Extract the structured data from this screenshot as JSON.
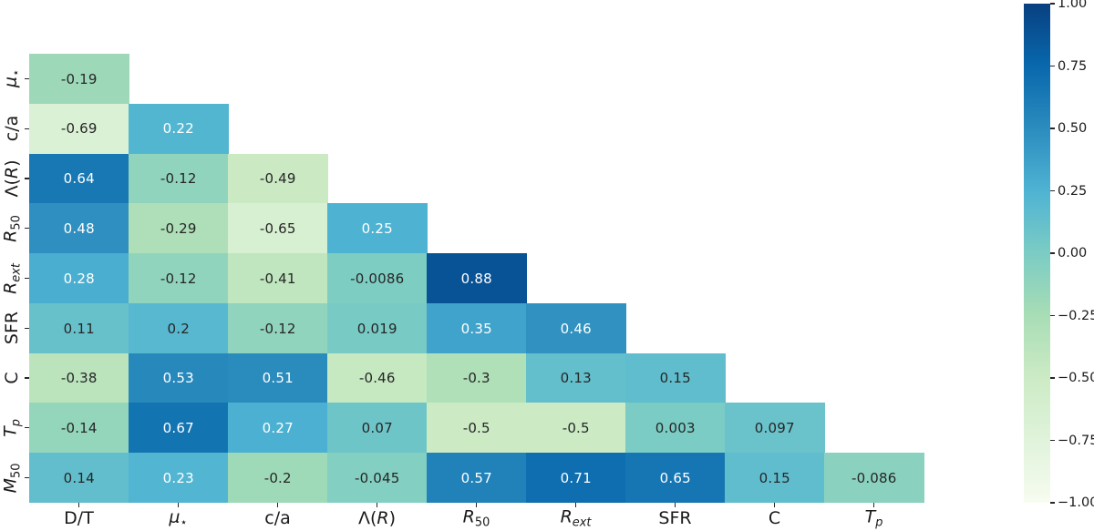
{
  "figure": {
    "background": "#ffffff"
  },
  "chart_data": {
    "type": "heatmap",
    "subtype": "lower-triangular correlation matrix",
    "title": "",
    "xlabel": "",
    "ylabel": "",
    "grid": false,
    "colormap": "GnBu",
    "vmin": -1,
    "vmax": 1,
    "colormap_stops": [
      "#f7fcf0",
      "#e0f3db",
      "#ccebc5",
      "#a8ddb5",
      "#7bccc4",
      "#4eb3d3",
      "#2b8cbe",
      "#0868ac",
      "#084081"
    ],
    "annotation_colors": {
      "dark": "#262626",
      "light": "#ffffff"
    },
    "x_labels_plain": [
      "D/T",
      "μ⋆",
      "c/a",
      "Λ(R)",
      "R50",
      "Rext",
      "SFR",
      "C",
      "Tp"
    ],
    "y_labels_plain": [
      "μ⋆",
      "c/a",
      "Λ(R)",
      "R50",
      "Rext",
      "SFR",
      "C",
      "Tp",
      "M50"
    ],
    "x_labels": [
      [
        {
          "t": "D/T"
        }
      ],
      [
        {
          "t": "μ",
          "i": 1
        },
        {
          "t": "⋆",
          "s": 1
        }
      ],
      [
        {
          "t": "c/a"
        }
      ],
      [
        {
          "t": "Λ("
        },
        {
          "t": "R",
          "i": 1
        },
        {
          "t": ")"
        }
      ],
      [
        {
          "t": "R",
          "i": 1
        },
        {
          "t": "50",
          "s": 1
        }
      ],
      [
        {
          "t": "R",
          "i": 1
        },
        {
          "t": "ext",
          "s": 1,
          "i": 1
        }
      ],
      [
        {
          "t": "SFR"
        }
      ],
      [
        {
          "t": "C"
        }
      ],
      [
        {
          "t": "T",
          "i": 1
        },
        {
          "t": "p",
          "s": 1,
          "i": 1
        }
      ]
    ],
    "y_labels": [
      [
        {
          "t": "μ",
          "i": 1
        },
        {
          "t": "⋆",
          "s": 1
        }
      ],
      [
        {
          "t": "c/a"
        }
      ],
      [
        {
          "t": "Λ("
        },
        {
          "t": "R",
          "i": 1
        },
        {
          "t": ")"
        }
      ],
      [
        {
          "t": "R",
          "i": 1
        },
        {
          "t": "50",
          "s": 1
        }
      ],
      [
        {
          "t": "R",
          "i": 1
        },
        {
          "t": "ext",
          "s": 1,
          "i": 1
        }
      ],
      [
        {
          "t": "SFR"
        }
      ],
      [
        {
          "t": "C"
        }
      ],
      [
        {
          "t": "T",
          "i": 1
        },
        {
          "t": "p",
          "s": 1,
          "i": 1
        }
      ],
      [
        {
          "t": "M",
          "i": 1
        },
        {
          "t": "50",
          "s": 1
        }
      ]
    ],
    "values": [
      [
        -0.19
      ],
      [
        -0.69,
        0.22
      ],
      [
        0.64,
        -0.12,
        -0.49
      ],
      [
        0.48,
        -0.29,
        -0.65,
        0.25
      ],
      [
        0.28,
        -0.12,
        -0.41,
        -0.0086,
        0.88
      ],
      [
        0.11,
        0.2,
        -0.12,
        0.019,
        0.35,
        0.46
      ],
      [
        -0.38,
        0.53,
        0.51,
        -0.46,
        -0.3,
        0.13,
        0.15
      ],
      [
        -0.14,
        0.67,
        0.27,
        0.07,
        -0.5,
        -0.5,
        0.003,
        0.097
      ],
      [
        0.14,
        0.23,
        -0.2,
        -0.045,
        0.57,
        0.71,
        0.65,
        0.15,
        -0.086
      ]
    ],
    "colorbar": {
      "position": "right",
      "tick_labels": [
        "1.00",
        "0.75",
        "0.50",
        "0.25",
        "0.00",
        "−0.25",
        "−0.50",
        "−0.75",
        "−1.00"
      ]
    }
  }
}
